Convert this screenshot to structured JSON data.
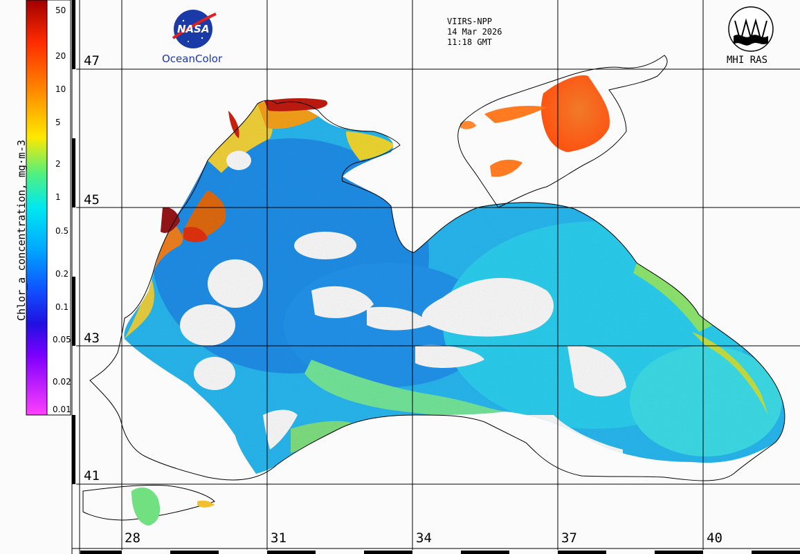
{
  "header": {
    "sensor": "VIIRS-NPP",
    "date": "14 Mar 2026",
    "time": "11:18 GMT"
  },
  "logos": {
    "left_logo_text": "NASA",
    "left_caption": "OceanColor",
    "right_caption": "MHI RAS"
  },
  "colorbar": {
    "title": "Chlor_a concentration, mg·m-3",
    "ticks": [
      "50",
      "20",
      "10",
      "5",
      "2",
      "1",
      "0.5",
      "0.2",
      "0.1",
      "0.05",
      "0.02",
      "0.01"
    ],
    "scale": "log",
    "range": [
      0.01,
      60
    ]
  },
  "grid": {
    "latitude_labels": [
      "47",
      "45",
      "43",
      "41"
    ],
    "longitude_labels": [
      "28",
      "31",
      "34",
      "37",
      "40"
    ]
  },
  "colors": {
    "high": "#c81a10",
    "orange": "#ff7a1a",
    "yellow": "#e8e020",
    "green": "#60e070",
    "cyan": "#18d8e8",
    "blue": "#2088f0",
    "land": "#ffffff",
    "cloud": "#ffffff"
  }
}
